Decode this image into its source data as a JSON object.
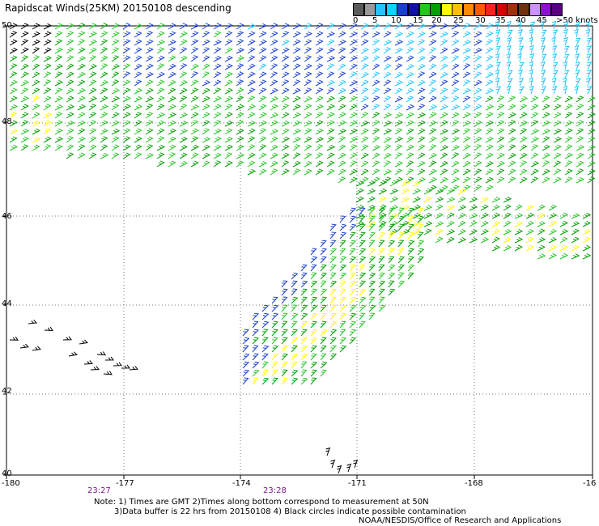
{
  "title": "Rapidscat Winds(25KM) 20150108 descending",
  "colorbar": {
    "colors": [
      "#5a5a5a",
      "#9a9a9a",
      "#22c3ff",
      "#00d8ff",
      "#1a3fd0",
      "#1010a0",
      "#22c622",
      "#00a000",
      "#ffff00",
      "#ffc000",
      "#ff8a00",
      "#ff5a00",
      "#ff2020",
      "#d40000",
      "#a0300a",
      "#703010",
      "#d090ff",
      "#9010d0",
      "#5a0080"
    ],
    "labels": [
      "0",
      "5",
      "10",
      "15",
      "20",
      "25",
      "30",
      "35",
      "40",
      "45",
      ">50 knots"
    ]
  },
  "map": {
    "lat_labels": [
      "50",
      "48",
      "46",
      "44",
      "42",
      "40"
    ],
    "lon_labels": [
      "-180",
      "-177",
      "-174",
      "-171",
      "-168",
      "-16"
    ],
    "time_labels": [
      "23:27",
      "23:28"
    ]
  },
  "notes": {
    "line1": "Note: 1) Times are GMT 2)Times along bottom correspond to measurement at 50N",
    "line2": "3)Data buffer is 22 hrs from 20150108 4) Black circles indicate possible contamination",
    "line3": "NOAA/NESDIS/Office of Research and Applications"
  }
}
